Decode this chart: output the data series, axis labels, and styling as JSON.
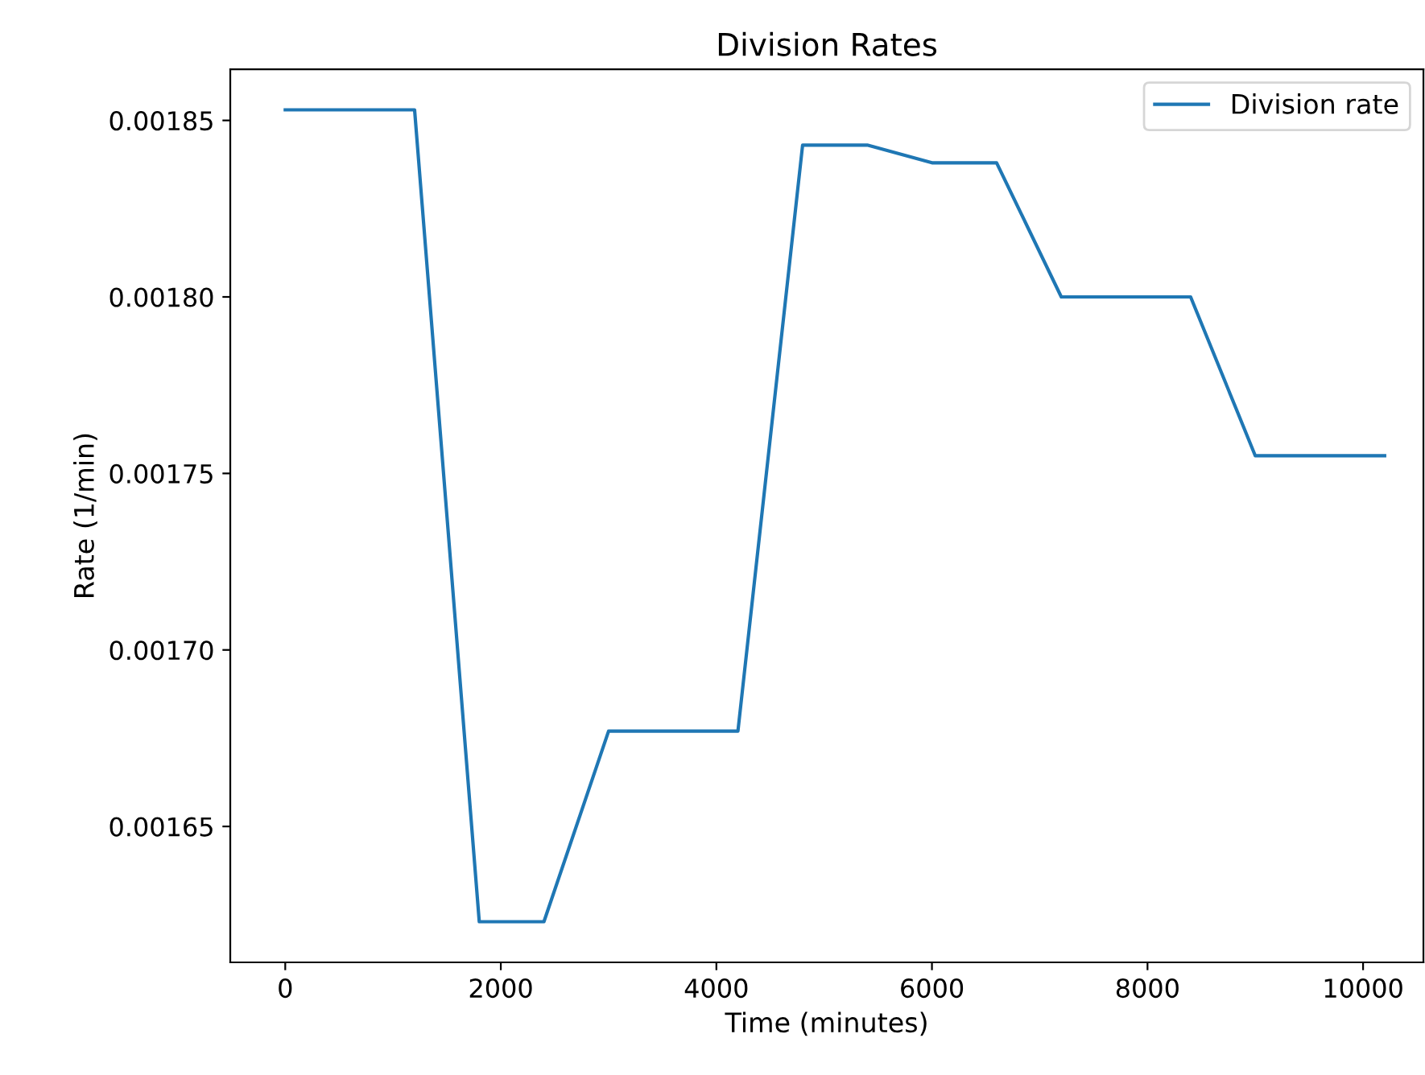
{
  "chart_data": {
    "type": "line",
    "title": "Division Rates",
    "xlabel": "Time (minutes)",
    "ylabel": "Rate (1/min)",
    "x": [
      0,
      1200,
      1800,
      2400,
      3000,
      4200,
      4800,
      5400,
      6000,
      6600,
      7200,
      8400,
      9000,
      10200
    ],
    "series": [
      {
        "name": "Division rate",
        "color": "#1f77b4",
        "values": [
          0.001853,
          0.001853,
          0.001623,
          0.001623,
          0.001677,
          0.001677,
          0.001843,
          0.001843,
          0.001838,
          0.001838,
          0.0018,
          0.0018,
          0.001755,
          0.001755
        ]
      }
    ],
    "xlim": [
      -510,
      10560
    ],
    "ylim": [
      0.0016115,
      0.0018645
    ],
    "xticks": [
      0,
      2000,
      4000,
      6000,
      8000,
      10000
    ],
    "yticks": [
      0.00165,
      {
        "value": 0.0017,
        "label": "0.00170"
      },
      0.00175,
      {
        "value": 0.0018,
        "label": "0.00180"
      },
      0.00185
    ],
    "legend": "top right",
    "grid": false,
    "marker": "none",
    "line_style": "solid"
  }
}
